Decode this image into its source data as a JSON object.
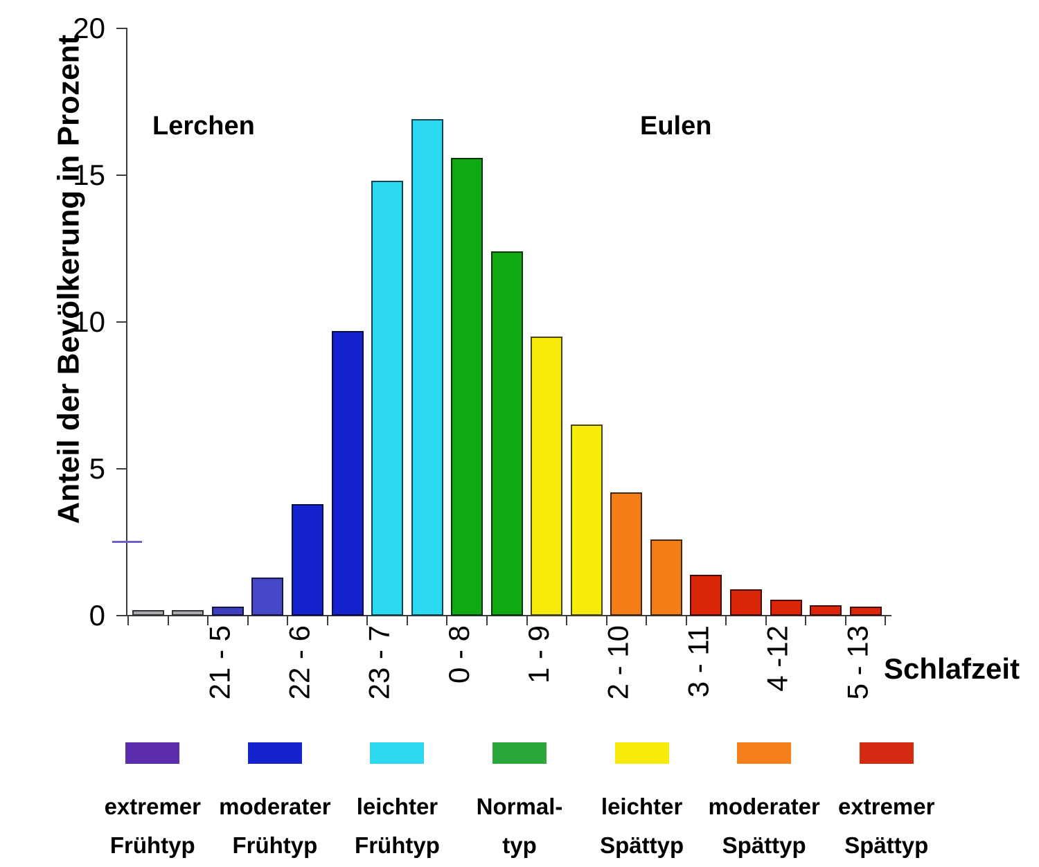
{
  "chart_data": {
    "type": "bar",
    "title": "",
    "ylabel": "Anteil der Bevölkerung in Prozent",
    "xlabel": "Schlafzeit",
    "ylim": [
      0,
      20
    ],
    "yticks": [
      0,
      5,
      10,
      15,
      20
    ],
    "grid": false,
    "annotations": {
      "left": "Lerchen",
      "right": "Eulen"
    },
    "reference_marker": {
      "y": 2.5,
      "color": "#6F5FC8"
    },
    "bars": [
      {
        "label": "",
        "value": 0.2,
        "color": "#A9A9A9"
      },
      {
        "label": "21 - 5",
        "value": 0.2,
        "color": "#A9A9A9"
      },
      {
        "label": "",
        "value": 0.3,
        "color": "#3E3FBE"
      },
      {
        "label": "22 - 6",
        "value": 1.3,
        "color": "#4549C8"
      },
      {
        "label": "",
        "value": 3.8,
        "color": "#1523CE"
      },
      {
        "label": "23 - 7",
        "value": 9.7,
        "color": "#1523CE"
      },
      {
        "label": "",
        "value": 14.8,
        "color": "#2CD9F0"
      },
      {
        "label": "0 - 8",
        "value": 16.9,
        "color": "#2CD9F0"
      },
      {
        "label": "",
        "value": 15.6,
        "color": "#11A911"
      },
      {
        "label": "1 - 9",
        "value": 12.4,
        "color": "#11A911"
      },
      {
        "label": "",
        "value": 9.5,
        "color": "#F6EB0B"
      },
      {
        "label": "2 - 10",
        "value": 6.5,
        "color": "#F6EB0B"
      },
      {
        "label": "",
        "value": 4.2,
        "color": "#F57D17"
      },
      {
        "label": "3 - 11",
        "value": 2.6,
        "color": "#F57D17"
      },
      {
        "label": "",
        "value": 1.4,
        "color": "#DB2508"
      },
      {
        "label": "4 -12",
        "value": 0.9,
        "color": "#DB2508"
      },
      {
        "label": "",
        "value": 0.55,
        "color": "#DB2508"
      },
      {
        "label": "5 - 13",
        "value": 0.35,
        "color": "#DB2508"
      },
      {
        "label": "",
        "value": 0.3,
        "color": "#DB2508"
      }
    ],
    "legend_position": "bottom"
  },
  "legend": {
    "items": [
      {
        "line1": "extremer",
        "line2": "Frühtyp",
        "color": "#5C2CAE"
      },
      {
        "line1": "moderater",
        "line2": "Frühtyp",
        "color": "#1523CE"
      },
      {
        "line1": "leichter",
        "line2": "Frühtyp",
        "color": "#2CD9F0"
      },
      {
        "line1": "Normal-",
        "line2": "typ",
        "color": "#2CA73B"
      },
      {
        "line1": "leichter",
        "line2": "Spättyp",
        "color": "#F6EB0B"
      },
      {
        "line1": "moderater",
        "line2": "Spättyp",
        "color": "#F5801C"
      },
      {
        "line1": "extremer",
        "line2": "Spättyp",
        "color": "#D52A12"
      }
    ]
  },
  "colors": {
    "axis": "#3c3c3c",
    "background": "#FFFFFF"
  }
}
